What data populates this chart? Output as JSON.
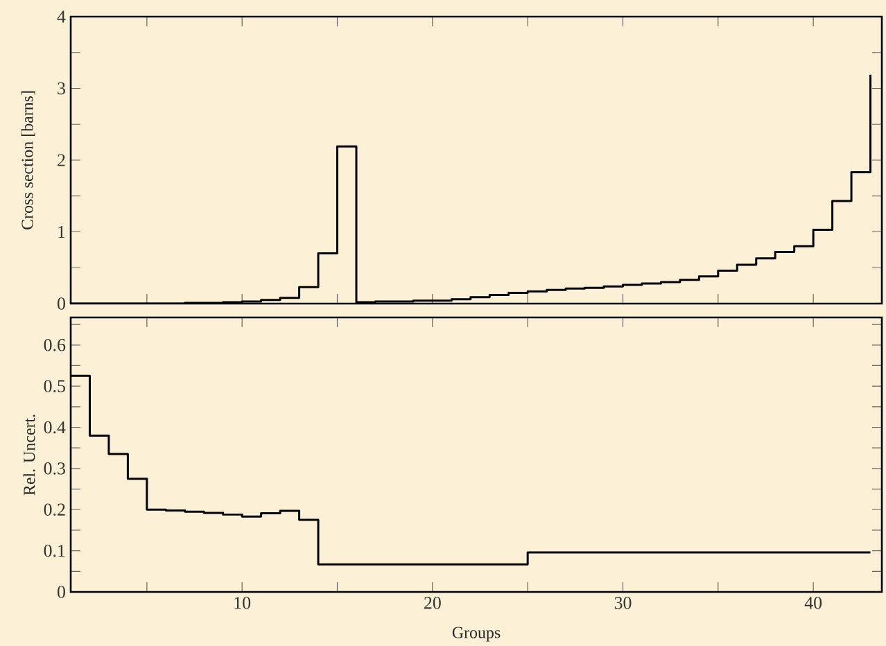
{
  "chart_data": [
    {
      "type": "step",
      "ylabel": "Cross section [barns]",
      "color": "#000000",
      "tick_labels": "y",
      "x": [
        1,
        2,
        3,
        4,
        5,
        6,
        7,
        8,
        9,
        10,
        11,
        12,
        13,
        14,
        15,
        16,
        17,
        18,
        19,
        20,
        21,
        22,
        23,
        24,
        25,
        26,
        27,
        28,
        29,
        30,
        31,
        32,
        33,
        34,
        35,
        36,
        37,
        38,
        39,
        40,
        41,
        42,
        43
      ],
      "values": [
        0,
        0,
        0,
        0,
        0,
        0,
        0.01,
        0.01,
        0.02,
        0.03,
        0.05,
        0.08,
        0.23,
        0.7,
        2.19,
        0.02,
        0.03,
        0.03,
        0.04,
        0.04,
        0.06,
        0.09,
        0.12,
        0.15,
        0.17,
        0.19,
        0.21,
        0.22,
        0.24,
        0.26,
        0.28,
        0.3,
        0.33,
        0.38,
        0.46,
        0.54,
        0.63,
        0.72,
        0.8,
        1.03,
        1.43,
        1.83,
        3.19
      ],
      "xlim": [
        1,
        43.6
      ],
      "ylim": [
        0,
        4
      ],
      "xticks": [
        {
          "value": 5,
          "label": null
        },
        {
          "value": 10,
          "label": null
        },
        {
          "value": 15,
          "label": null
        },
        {
          "value": 20,
          "label": null
        },
        {
          "value": 25,
          "label": null
        },
        {
          "value": 30,
          "label": null
        },
        {
          "value": 35,
          "label": null
        },
        {
          "value": 40,
          "label": null
        }
      ],
      "yticks": [
        0,
        {
          "value": 0.5,
          "label": null
        },
        1,
        {
          "value": 1.5,
          "label": null
        },
        2,
        {
          "value": 2.5,
          "label": null
        },
        3,
        {
          "value": 3.5,
          "label": null
        },
        4
      ]
    },
    {
      "type": "step",
      "xlabel": "Groups",
      "ylabel": "Rel. Uncert.",
      "color": "#000000",
      "x": [
        1,
        2,
        3,
        4,
        5,
        6,
        7,
        8,
        9,
        10,
        11,
        12,
        13,
        14,
        15,
        16,
        17,
        18,
        19,
        20,
        21,
        22,
        23,
        24,
        25,
        26,
        27,
        28,
        29,
        30,
        31,
        32,
        33,
        34,
        35,
        36,
        37,
        38,
        39,
        40,
        41,
        42,
        43
      ],
      "values": [
        0.525,
        0.38,
        0.335,
        0.275,
        0.2,
        0.198,
        0.195,
        0.192,
        0.188,
        0.183,
        0.191,
        0.197,
        0.175,
        0.067,
        0.067,
        0.067,
        0.067,
        0.067,
        0.067,
        0.067,
        0.067,
        0.067,
        0.067,
        0.067,
        0.096,
        0.096,
        0.096,
        0.096,
        0.096,
        0.096,
        0.096,
        0.096,
        0.096,
        0.096,
        0.096,
        0.096,
        0.096,
        0.096,
        0.096,
        0.096,
        0.096,
        0.096,
        0.096
      ],
      "xlim": [
        1,
        43.6
      ],
      "ylim": [
        0,
        0.667
      ],
      "xticks": [
        {
          "value": 5,
          "label": null
        },
        10,
        {
          "value": 15,
          "label": null
        },
        20,
        {
          "value": 25,
          "label": null
        },
        30,
        {
          "value": 35,
          "label": null
        },
        40
      ],
      "yticks": [
        0,
        {
          "value": 0.05,
          "label": null
        },
        0.1,
        {
          "value": 0.15,
          "label": null
        },
        0.2,
        {
          "value": 0.25,
          "label": null
        },
        0.3,
        {
          "value": 0.35,
          "label": null
        },
        0.4,
        {
          "value": 0.45,
          "label": null
        },
        0.5,
        {
          "value": 0.55,
          "label": null
        },
        0.6,
        {
          "value": 0.65,
          "label": null
        }
      ]
    }
  ]
}
